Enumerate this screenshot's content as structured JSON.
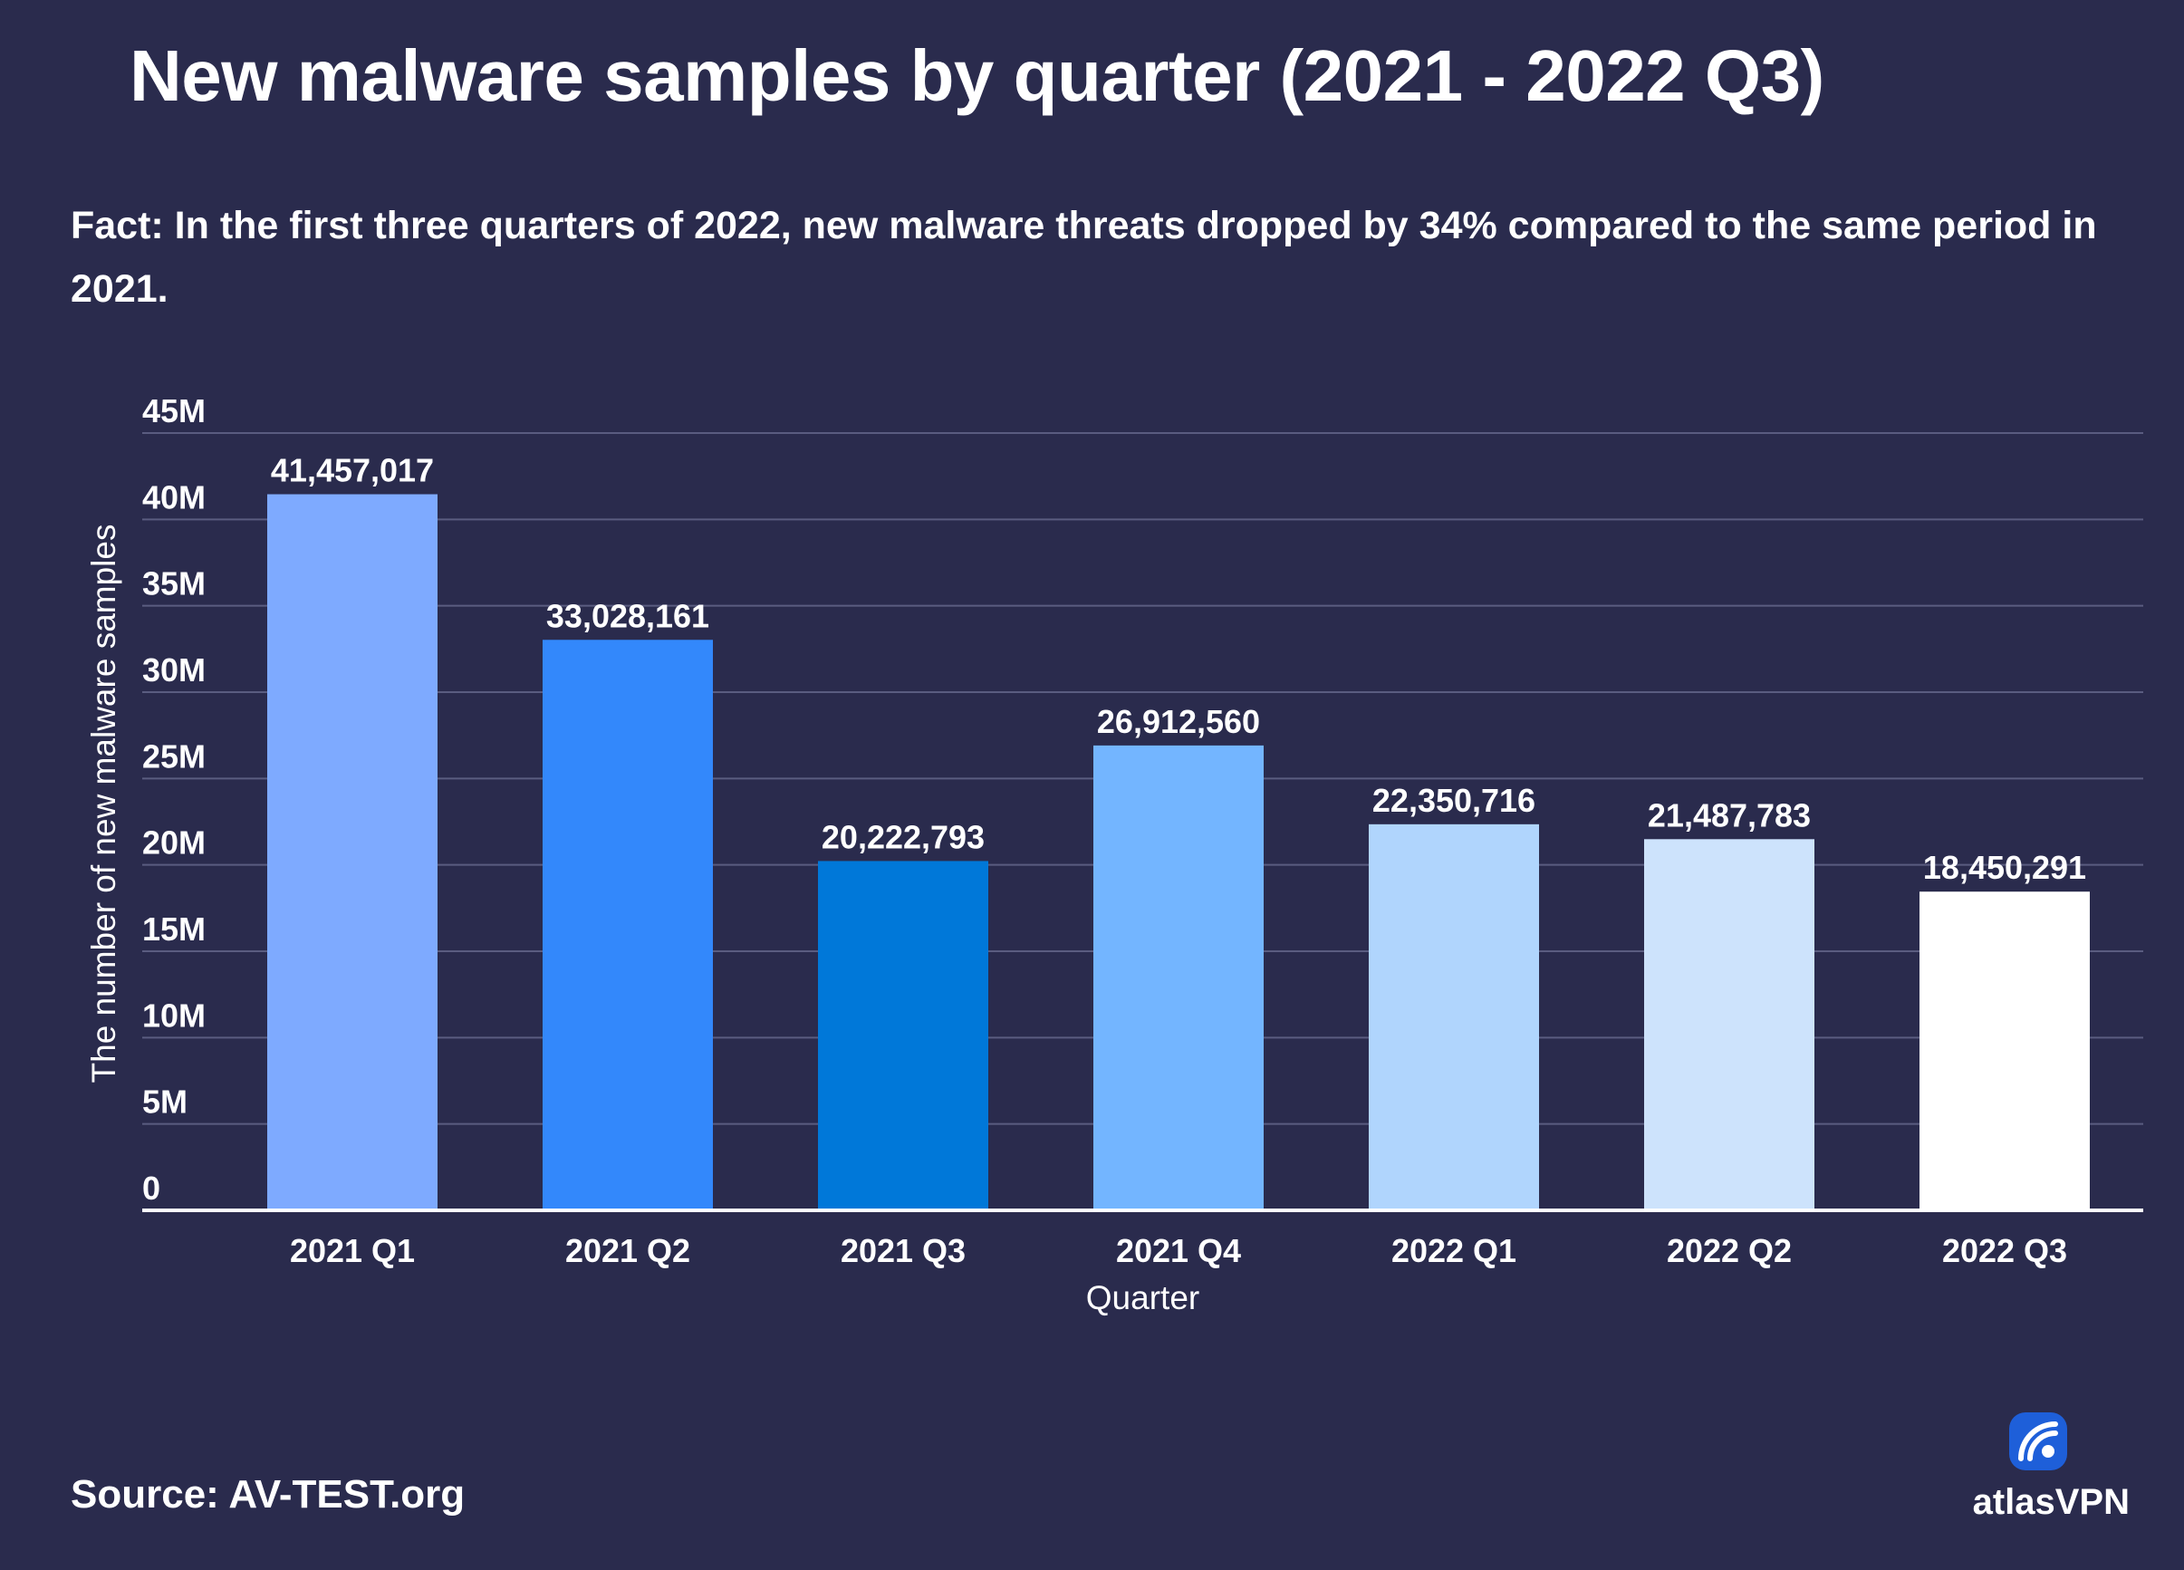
{
  "header": {
    "title": "New malware samples by quarter (2021 - 2022 Q3)",
    "fact": "Fact: In the first three quarters of 2022, new malware threats dropped by 34% compared to the same period in 2021."
  },
  "footer": {
    "source": "Source: AV-TEST.org",
    "brand": "atlasVPN",
    "brand_icon": "atlas-vpn-signal-icon"
  },
  "colors": {
    "background": "#2a2b4d",
    "gridline": "#5a5c80",
    "text": "#ffffff"
  },
  "chart_data": {
    "type": "bar",
    "title": "New malware samples by quarter (2021 - 2022 Q3)",
    "xlabel": "Quarter",
    "ylabel": "The number of new malware samples",
    "ylim": [
      0,
      45000000
    ],
    "yticks": [
      0,
      5000000,
      10000000,
      15000000,
      20000000,
      25000000,
      30000000,
      35000000,
      40000000,
      45000000
    ],
    "ytick_labels": [
      "0",
      "5M",
      "10M",
      "15M",
      "20M",
      "25M",
      "30M",
      "35M",
      "40M",
      "45M"
    ],
    "grid": true,
    "categories": [
      "2021 Q1",
      "2021 Q2",
      "2021 Q3",
      "2021 Q4",
      "2022 Q1",
      "2022 Q2",
      "2022 Q3"
    ],
    "values": [
      41457017,
      33028161,
      20222793,
      26912560,
      22350716,
      21487783,
      18450291
    ],
    "value_labels": [
      "41,457,017",
      "33,028,161",
      "20,222,793",
      "26,912,560",
      "22,350,716",
      "21,487,783",
      "18,450,291"
    ],
    "bar_colors": [
      "#7eaaff",
      "#3388fb",
      "#0078d9",
      "#73b5ff",
      "#b0d5fd",
      "#cde3fc",
      "#ffffff"
    ]
  }
}
